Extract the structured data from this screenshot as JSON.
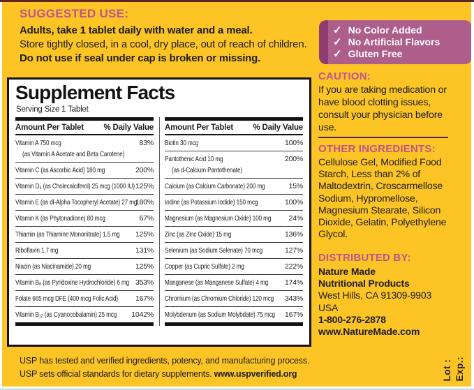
{
  "colors": {
    "background": "#FDC426",
    "magenta": "#C0548E",
    "badge_bg": "#AD5E8B",
    "badge_strip": "#8E3D6F",
    "text": "#1D1D1B",
    "separator": "#4A2430"
  },
  "suggested_use": {
    "heading": "SUGGESTED USE:",
    "line1": "Adults, take 1 tablet daily with water and a meal.",
    "line2": "Store tightly closed, in a cool, dry place, out of reach of children.",
    "line3": "Do not use if seal under cap is broken or missing."
  },
  "badges": {
    "check": "✓",
    "items": [
      "No Color Added",
      "No Artificial Flavors",
      "Gluten Free"
    ]
  },
  "supplement_facts": {
    "title": "Supplement Facts",
    "serving_size": "Serving Size 1 Tablet",
    "amount_header": "Amount Per Tablet",
    "dv_header": "% Daily Value",
    "left_rows": [
      {
        "text": "Vitamin A  750 mcg",
        "sub": "(as Vitamin A Acetate and Beta Carotene)",
        "dv": "83%"
      },
      {
        "text": "Vitamin C (as Ascorbic Acid)  180 mg",
        "dv": "200%"
      },
      {
        "text": "Vitamin D₃ (as Cholecalciferol)  25 mcg (1000 IU)",
        "dv": "125%"
      },
      {
        "text": "Vitamin E (as dl-Alpha Tocopheryl Acetate)  27 mg",
        "dv": "180%"
      },
      {
        "text": "Vitamin K (as Phytonadione)  80 mcg",
        "dv": "67%"
      },
      {
        "text": "Thiamin (as Thiamine Mononitrate)  1.5 mg",
        "dv": "125%"
      },
      {
        "text": "Riboflavin  1.7 mg",
        "dv": "131%"
      },
      {
        "text": "Niacin (as Niacinamide)  20 mg",
        "dv": "125%"
      },
      {
        "text": "Vitamin B₆ (as Pyridoxine Hydrochloride)  6 mg",
        "dv": "353%"
      },
      {
        "text": "Folate  665 mcg DFE (400 mcg Folic Acid)",
        "dv": "167%"
      },
      {
        "text": "Vitamin B₁₂ (as Cyanocobalamin)  25 mcg",
        "dv": "1042%"
      }
    ],
    "right_rows": [
      {
        "text": "Biotin  30 mcg",
        "dv": "100%"
      },
      {
        "text": "Pantothenic Acid  10 mg",
        "sub": "(as d-Calcium Pantothenate)",
        "dv": "200%"
      },
      {
        "text": "Calcium (as Calcium Carbonate)  200 mg",
        "dv": "15%"
      },
      {
        "text": "Iodine (as Potassium Iodide)  150 mcg",
        "dv": "100%"
      },
      {
        "text": "Magnesium (as Magnesium Oxide)  100 mg",
        "dv": "24%"
      },
      {
        "text": "Zinc (as Zinc Oxide)  15 mg",
        "dv": "136%"
      },
      {
        "text": "Selenium (as Sodium Selenate)  70 mcg",
        "dv": "127%"
      },
      {
        "text": "Copper (as Cupric Sulfate)  2 mg",
        "dv": "222%"
      },
      {
        "text": "Manganese (as Manganese Sulfate)  4 mg",
        "dv": "174%"
      },
      {
        "text": "Chromium (as Chromium Chloride)  120 mcg",
        "dv": "343%"
      },
      {
        "text": "Molybdenum (as Sodium Molybdate)  75 mcg",
        "dv": "167%"
      }
    ]
  },
  "caution": {
    "heading": "CAUTION:",
    "body": "If you are taking medication or have blood clotting issues, consult your physician before use."
  },
  "other_ingredients": {
    "heading": "OTHER INGREDIENTS:",
    "body": "Cellulose Gel, Modified Food Starch, Less than 2% of Maltodextrin, Croscarmellose Sodium, Hypromellose, Magnesium Stearate, Silicon Dioxide, Gelatin, Polyethylene Glycol."
  },
  "distributed_by": {
    "heading": "DISTRIBUTED BY:",
    "org1": "Nature Made",
    "org2": "Nutritional Products",
    "address1": "West Hills, CA 91309-9903",
    "address2": "USA",
    "phone": "1-800-276-2878",
    "website": "www.NatureMade.com"
  },
  "usp": {
    "line1": "USP has tested and verified ingredients, potency, and manufacturing process.",
    "line2": "USP sets official standards for dietary supplements. ",
    "line2_bold": "www.uspverified.org"
  },
  "lot_exp": {
    "lot": "Lot :",
    "exp": "Exp.:"
  }
}
